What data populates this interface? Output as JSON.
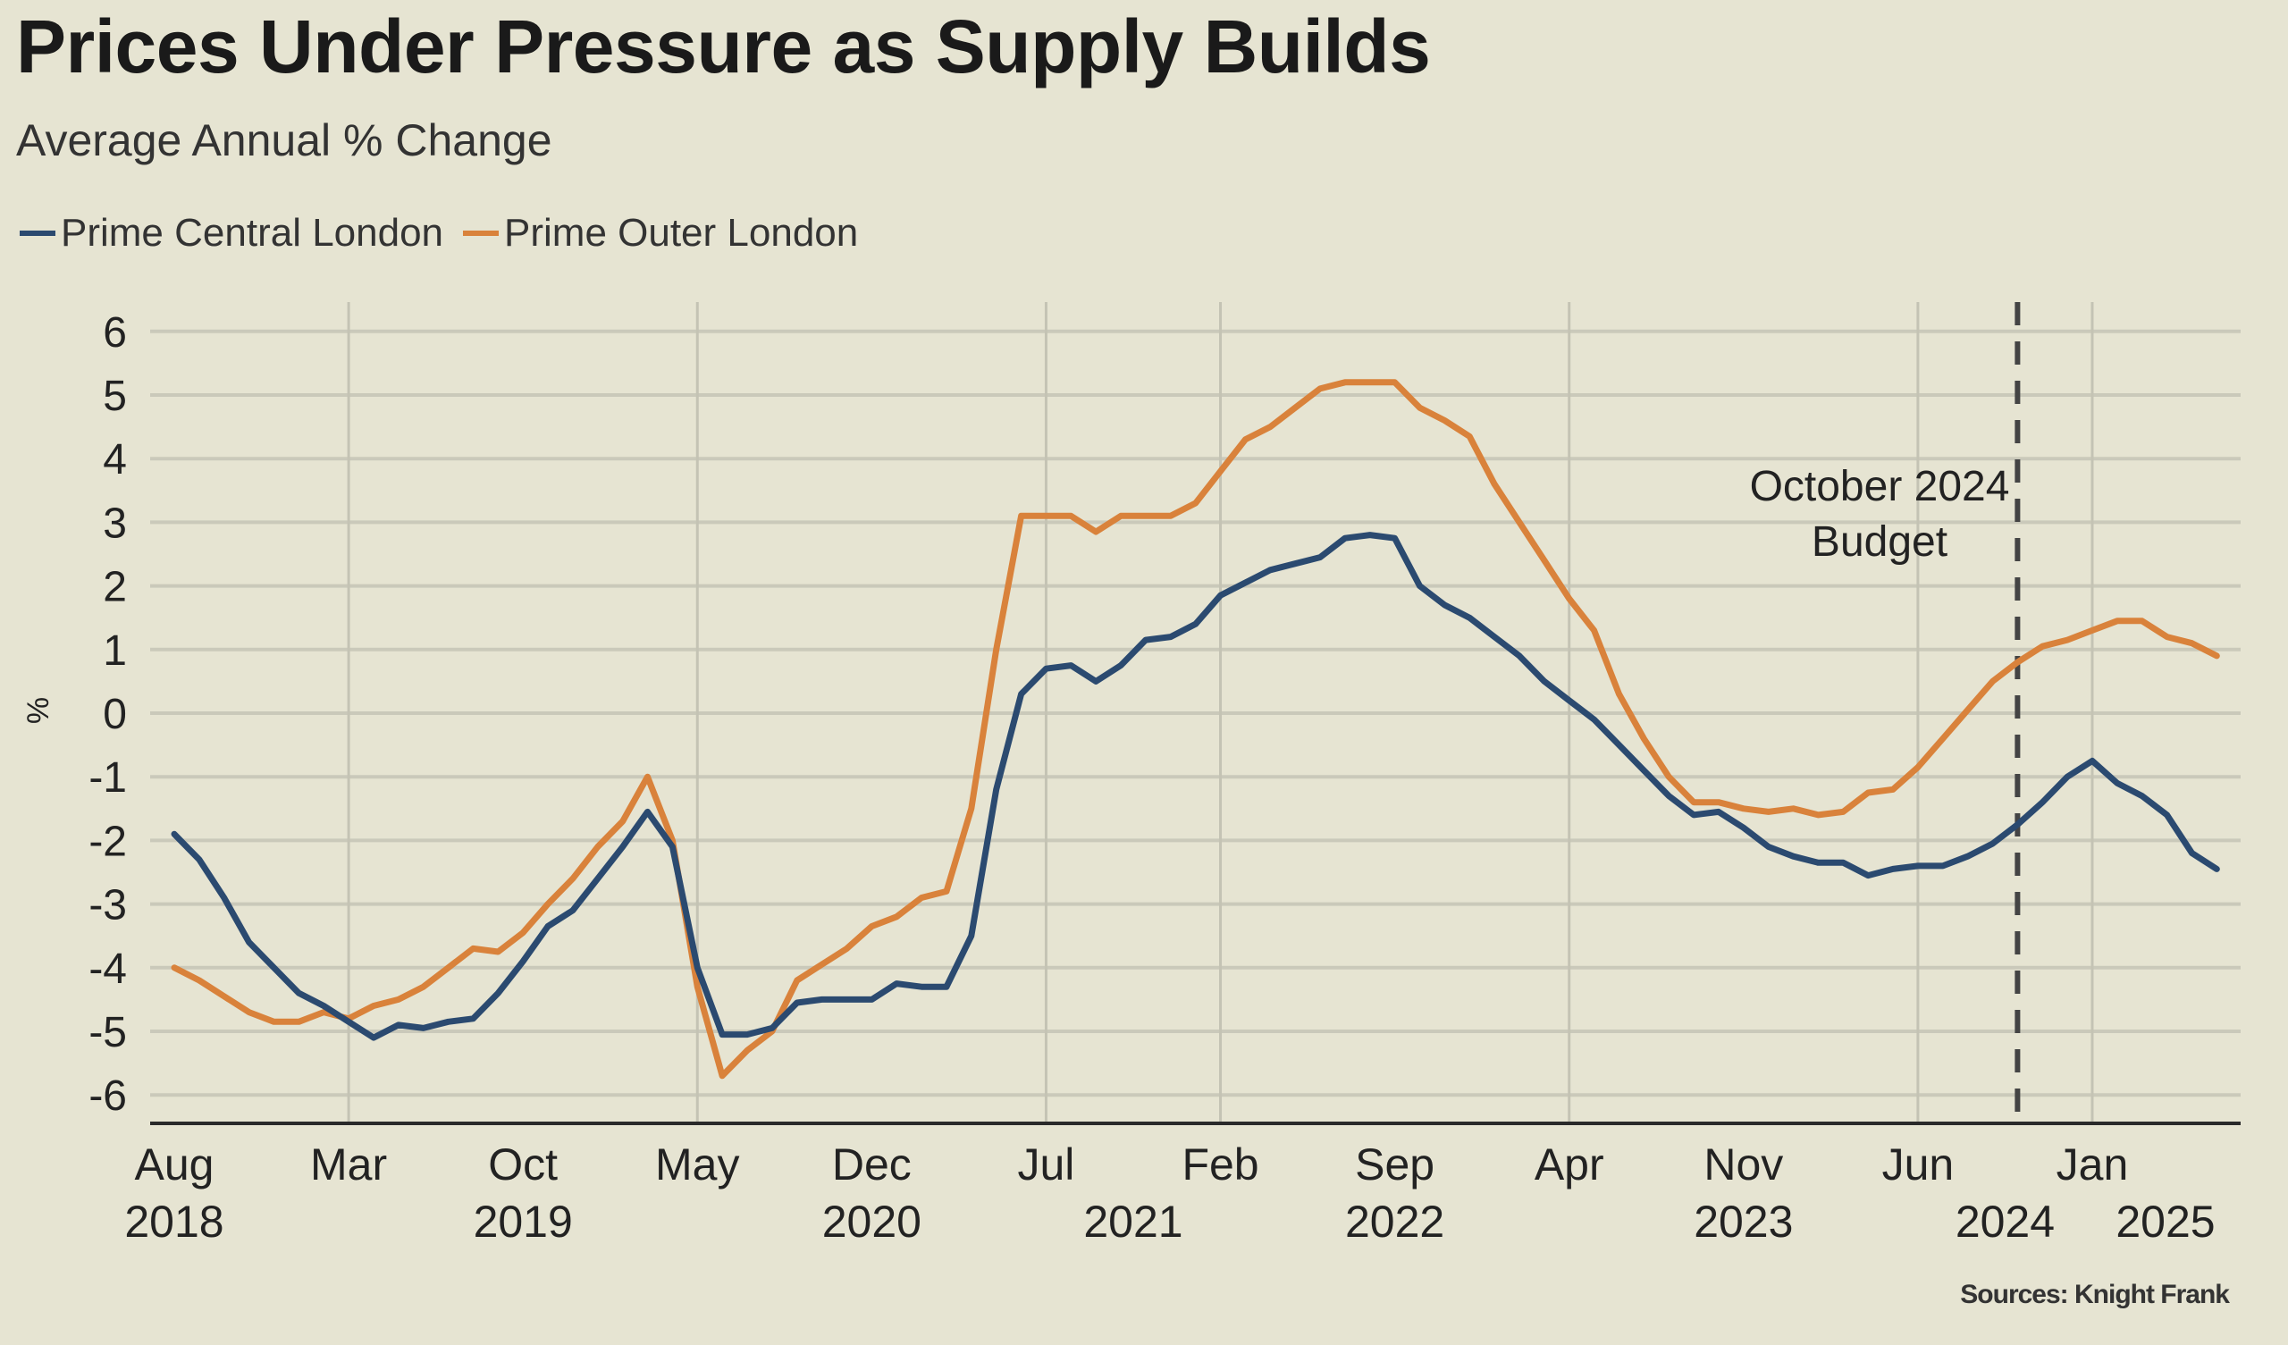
{
  "chart_data": {
    "type": "line",
    "title": "Prices Under Pressure as Supply Builds",
    "subtitle": "Average Annual % Change",
    "ylabel": "%",
    "xlabel": "",
    "ylim": [
      -6,
      6
    ],
    "yticks": [
      6,
      5,
      4,
      3,
      2,
      1,
      0,
      -1,
      -2,
      -3,
      -4,
      -5,
      -6
    ],
    "grid": true,
    "legend_position": "top-left",
    "source": "Sources: Knight Frank",
    "x": [
      "2018-08",
      "2018-09",
      "2018-10",
      "2018-11",
      "2018-12",
      "2019-01",
      "2019-02",
      "2019-03",
      "2019-04",
      "2019-05",
      "2019-06",
      "2019-07",
      "2019-08",
      "2019-09",
      "2019-10",
      "2019-11",
      "2019-12",
      "2020-01",
      "2020-02",
      "2020-03",
      "2020-04",
      "2020-05",
      "2020-06",
      "2020-07",
      "2020-08",
      "2020-09",
      "2020-10",
      "2020-11",
      "2020-12",
      "2021-01",
      "2021-02",
      "2021-03",
      "2021-04",
      "2021-05",
      "2021-06",
      "2021-07",
      "2021-08",
      "2021-09",
      "2021-10",
      "2021-11",
      "2021-12",
      "2022-01",
      "2022-02",
      "2022-03",
      "2022-04",
      "2022-05",
      "2022-06",
      "2022-07",
      "2022-08",
      "2022-09",
      "2022-10",
      "2022-11",
      "2022-12",
      "2023-01",
      "2023-02",
      "2023-03",
      "2023-04",
      "2023-05",
      "2023-06",
      "2023-07",
      "2023-08",
      "2023-09",
      "2023-10",
      "2023-11",
      "2023-12",
      "2024-01",
      "2024-02",
      "2024-03",
      "2024-04",
      "2024-05",
      "2024-06",
      "2024-07",
      "2024-08",
      "2024-09",
      "2024-10",
      "2024-11",
      "2024-12",
      "2025-01",
      "2025-02",
      "2025-03",
      "2025-04",
      "2025-05",
      "2025-06"
    ],
    "x_ticks": [
      {
        "month": "Aug",
        "year": "2018",
        "at": "2018-08"
      },
      {
        "month": "Mar",
        "year": "",
        "at": "2019-03"
      },
      {
        "month": "Oct",
        "year": "2019",
        "at": "2019-10"
      },
      {
        "month": "May",
        "year": "",
        "at": "2020-05"
      },
      {
        "month": "Dec",
        "year": "2020",
        "at": "2020-12"
      },
      {
        "month": "Jul",
        "year": "",
        "at": "2021-07"
      },
      {
        "month": "Feb",
        "year": "",
        "at": "2022-02"
      },
      {
        "month": "Sep",
        "year": "2022",
        "at": "2022-09"
      },
      {
        "month": "Apr",
        "year": "",
        "at": "2023-04"
      },
      {
        "month": "Nov",
        "year": "2023",
        "at": "2023-11"
      },
      {
        "month": "Jun",
        "year": "",
        "at": "2024-06"
      },
      {
        "month": "Jan",
        "year": "",
        "at": "2025-01"
      }
    ],
    "extra_year_labels": [
      {
        "year": "2021",
        "between": [
          "2021-07",
          "2022-02"
        ]
      },
      {
        "year": "2024",
        "between": [
          "2024-06",
          "2025-01"
        ]
      },
      {
        "year": "2025",
        "after": "2025-01"
      }
    ],
    "vertical_gridlines_at": [
      "2019-03",
      "2020-05",
      "2021-07",
      "2022-02",
      "2023-04",
      "2024-06",
      "2025-01"
    ],
    "annotation": {
      "lines": [
        "October 2024",
        "Budget"
      ],
      "at": "2024-10",
      "style": "dashed vertical line"
    },
    "series": [
      {
        "name": "Prime Central London",
        "color": "#2b4a70",
        "values": [
          -1.9,
          -2.3,
          -2.9,
          -3.6,
          -4.0,
          -4.4,
          -4.6,
          -4.85,
          -5.1,
          -4.9,
          -4.95,
          -4.85,
          -4.8,
          -4.4,
          -3.9,
          -3.35,
          -3.1,
          -2.6,
          -2.1,
          -1.55,
          -2.1,
          -4.0,
          -5.05,
          -5.05,
          -4.95,
          -4.55,
          -4.5,
          -4.5,
          -4.5,
          -4.25,
          -4.3,
          -4.3,
          -3.5,
          -1.2,
          0.3,
          0.7,
          0.75,
          0.5,
          0.75,
          1.15,
          1.2,
          1.4,
          1.85,
          2.05,
          2.25,
          2.35,
          2.45,
          2.75,
          2.8,
          2.75,
          2.0,
          1.7,
          1.5,
          1.2,
          0.9,
          0.5,
          0.2,
          -0.1,
          -0.5,
          -0.9,
          -1.3,
          -1.6,
          -1.55,
          -1.8,
          -2.1,
          -2.25,
          -2.35,
          -2.35,
          -2.55,
          -2.45,
          -2.4,
          -2.4,
          -2.25,
          -2.05,
          -1.75,
          -1.4,
          -1.0,
          -0.75,
          -1.1,
          -1.3,
          -1.6,
          -2.2,
          -2.45
        ]
      },
      {
        "name": "Prime Outer London",
        "color": "#d9823b",
        "values": [
          -4.0,
          -4.2,
          -4.45,
          -4.7,
          -4.85,
          -4.85,
          -4.7,
          -4.8,
          -4.6,
          -4.5,
          -4.3,
          -4.0,
          -3.7,
          -3.75,
          -3.45,
          -3.0,
          -2.6,
          -2.1,
          -1.7,
          -1.0,
          -2.0,
          -4.3,
          -5.7,
          -5.3,
          -5.0,
          -4.2,
          -3.95,
          -3.7,
          -3.35,
          -3.2,
          -2.9,
          -2.8,
          -1.5,
          1.0,
          3.1,
          3.1,
          3.1,
          2.85,
          3.1,
          3.1,
          3.1,
          3.3,
          3.8,
          4.3,
          4.5,
          4.8,
          5.1,
          5.2,
          5.2,
          5.2,
          4.8,
          4.6,
          4.35,
          3.6,
          3.0,
          2.4,
          1.8,
          1.3,
          0.3,
          -0.4,
          -1.0,
          -1.4,
          -1.4,
          -1.5,
          -1.55,
          -1.5,
          -1.6,
          -1.55,
          -1.25,
          -1.2,
          -0.85,
          -0.4,
          0.05,
          0.5,
          0.8,
          1.05,
          1.15,
          1.3,
          1.45,
          1.45,
          1.2,
          1.1,
          0.9
        ]
      }
    ]
  }
}
